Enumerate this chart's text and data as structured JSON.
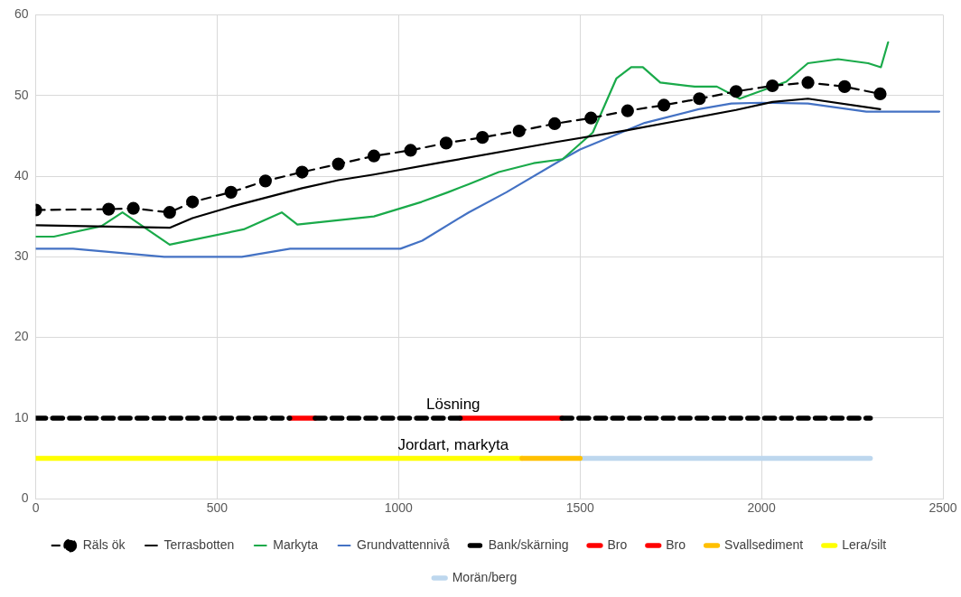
{
  "chart_data": {
    "type": "line",
    "xlim": [
      0,
      2500
    ],
    "xticks": [
      0,
      500,
      1000,
      1500,
      2000,
      2500
    ],
    "ylim": [
      0,
      60
    ],
    "yticks": [
      0,
      10,
      20,
      30,
      40,
      50,
      60
    ],
    "grid": true,
    "legend": "bottom",
    "annotations": [
      "Lösning",
      "Jordart, markyta"
    ],
    "series": [
      {
        "name": "Räls ök",
        "color": "#000000",
        "line_style": "dashed",
        "marker": "circle",
        "x": [
          0,
          201,
          269,
          369,
          432,
          538,
          633,
          734,
          834,
          932,
          1033,
          1131,
          1231,
          1332,
          1430,
          1530,
          1631,
          1731,
          1829,
          1930,
          2030,
          2128,
          2229,
          2327
        ],
        "values": [
          35.8,
          35.9,
          36,
          35.5,
          36.8,
          38,
          39.4,
          40.5,
          41.5,
          42.5,
          43.2,
          44.1,
          44.8,
          45.6,
          46.5,
          47.2,
          48.1,
          48.8,
          49.6,
          50.5,
          51.2,
          51.6,
          51.1,
          50.2
        ]
      },
      {
        "name": "Terrasbotten",
        "color": "#000000",
        "line_style": "solid",
        "marker": "none",
        "x": [
          0,
          369,
          432,
          538,
          734,
          834,
          932,
          1131,
          1430,
          1631,
          1930,
          2030,
          2128,
          2327
        ],
        "values": [
          33.9,
          33.6,
          34.8,
          36.2,
          38.5,
          39.5,
          40.2,
          41.8,
          44.2,
          45.7,
          48.2,
          49.2,
          49.6,
          48.3
        ]
      },
      {
        "name": "Markyta",
        "color": "#1aaa4a",
        "line_style": "solid",
        "marker": "none",
        "x": [
          0,
          50,
          100,
          181,
          239,
          369,
          573,
          678,
          721,
          932,
          1063,
          1136,
          1193,
          1276,
          1372,
          1452,
          1535,
          1600,
          1641,
          1673,
          1721,
          1816,
          1877,
          1940,
          2068,
          2128,
          2211,
          2294,
          2329,
          2349
        ],
        "values": [
          32.5,
          32.5,
          33,
          33.8,
          35.5,
          31.5,
          33.4,
          35.5,
          34,
          35,
          36.8,
          38,
          39,
          40.5,
          41.6,
          42.1,
          45.4,
          52.1,
          53.5,
          53.5,
          51.6,
          51.1,
          51.1,
          49.6,
          51.7,
          54,
          54.5,
          54,
          53.5,
          56.6
        ]
      },
      {
        "name": "Grundvattennivå",
        "color": "#4472c4",
        "line_style": "solid",
        "marker": "none",
        "x": [
          0,
          103,
          354,
          568,
          701,
          1005,
          1065,
          1193,
          1297,
          1452,
          1500,
          1678,
          1827,
          1917,
          2000,
          2128,
          2289,
          2490
        ],
        "values": [
          31,
          31,
          30,
          30,
          31,
          31,
          32,
          35.5,
          38,
          42.1,
          43.3,
          46.6,
          48.3,
          49,
          49.1,
          49,
          48,
          48
        ]
      },
      {
        "name": "Bank/skärning",
        "color": "#000000",
        "line_style": "dashed",
        "marker": "none",
        "x": [
          0,
          700,
          735,
          770,
          1170,
          1310,
          1450,
          2300
        ],
        "values": [
          10,
          10,
          null,
          10,
          10,
          null,
          10,
          10
        ]
      },
      {
        "name": "Bro",
        "color": "#ff0000",
        "line_style": "solid",
        "marker": "none",
        "x": [
          700,
          770
        ],
        "values": [
          10,
          10
        ]
      },
      {
        "name": "Bro",
        "color": "#ff0000",
        "line_style": "solid",
        "marker": "none",
        "x": [
          1170,
          1450
        ],
        "values": [
          10,
          10
        ]
      },
      {
        "name": "Svallsediment",
        "color": "#ffc000",
        "line_style": "solid",
        "marker": "none",
        "x": [
          1340,
          1500
        ],
        "values": [
          5,
          5
        ]
      },
      {
        "name": "Lera/silt",
        "color": "#ffff00",
        "line_style": "solid",
        "marker": "none",
        "x": [
          0,
          1340
        ],
        "values": [
          5,
          5
        ]
      },
      {
        "name": "Morän/berg",
        "color": "#bdd7ee",
        "line_style": "solid",
        "marker": "none",
        "x": [
          1500,
          2300
        ],
        "values": [
          5,
          5
        ]
      }
    ]
  }
}
